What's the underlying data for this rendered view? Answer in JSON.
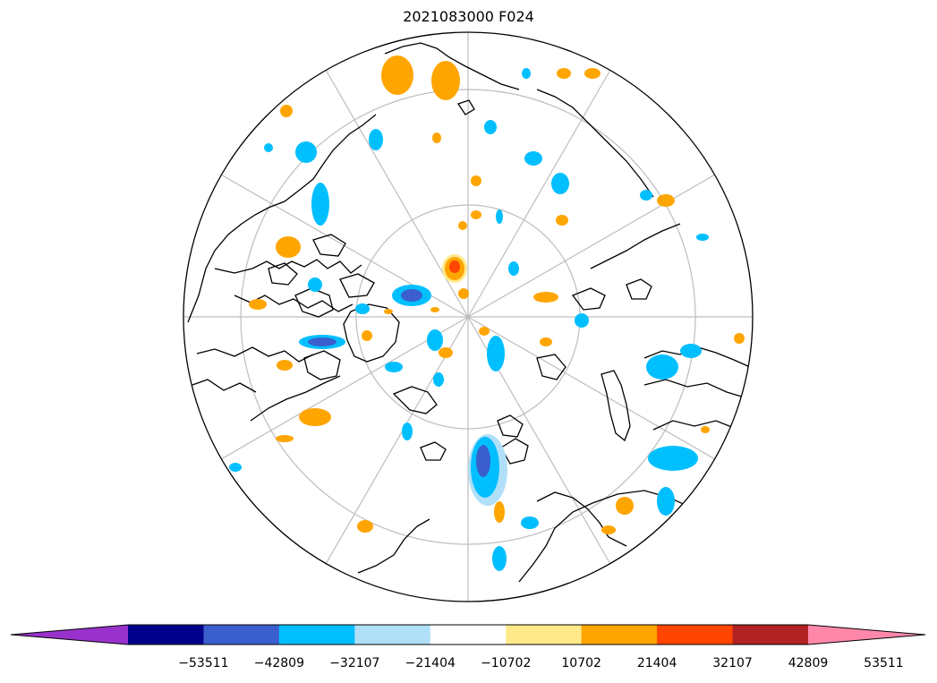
{
  "title": "2021083000 F024",
  "colorbar": {
    "colors": [
      "#9932cc",
      "#00008b",
      "#3a5fcd",
      "#00bfff",
      "#b0e0f8",
      "#ffffff",
      "#ffe98a",
      "#ffa500",
      "#ff4500",
      "#b22222",
      "#ff88aa"
    ],
    "tick_labels": [
      "−53511",
      "−42809",
      "−32107",
      "−21404",
      "−10702",
      "10702",
      "21404",
      "32107",
      "42809",
      "53511"
    ]
  },
  "palette": {
    "blue_light": "#b0e0f8",
    "blue_mid": "#00bfff",
    "blue_dark": "#3a5fcd",
    "orange_light": "#ffe98a",
    "orange_mid": "#ffa500",
    "red": "#ff4500"
  }
}
